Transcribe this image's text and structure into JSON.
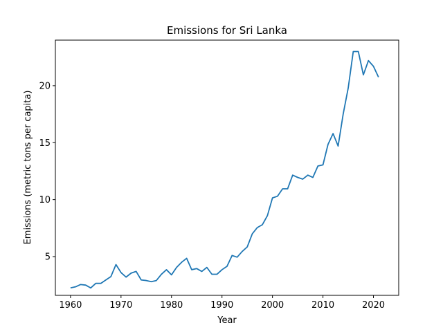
{
  "chart_data": {
    "type": "line",
    "title": "Emissions for Sri Lanka",
    "xlabel": "Year",
    "ylabel": "Emissions (metric tons per capita)",
    "xlim": [
      1957,
      2025
    ],
    "ylim": [
      1.6,
      24.0
    ],
    "x_ticks": [
      1960,
      1970,
      1980,
      1990,
      2000,
      2010,
      2020
    ],
    "y_ticks": [
      5,
      10,
      15,
      20
    ],
    "grid": false,
    "line_color": "#1f77b4",
    "series": [
      {
        "x": [
          1960,
          1961,
          1962,
          1963,
          1964,
          1965,
          1966,
          1967,
          1968,
          1969,
          1970,
          1971,
          1972,
          1973,
          1974,
          1975,
          1976,
          1977,
          1978,
          1979,
          1980,
          1981,
          1982,
          1983,
          1984,
          1985,
          1986,
          1987,
          1988,
          1989,
          1990,
          1991,
          1992,
          1993,
          1994,
          1995,
          1996,
          1997,
          1998,
          1999,
          2000,
          2001,
          2002,
          2003,
          2004,
          2005,
          2006,
          2007,
          2008,
          2009,
          2010,
          2011,
          2012,
          2013,
          2014,
          2015,
          2016,
          2017,
          2018,
          2019,
          2020,
          2021
        ],
        "values": [
          2.25,
          2.35,
          2.55,
          2.5,
          2.25,
          2.65,
          2.65,
          2.95,
          3.25,
          4.3,
          3.6,
          3.2,
          3.55,
          3.7,
          2.95,
          2.9,
          2.8,
          2.9,
          3.45,
          3.85,
          3.4,
          4.05,
          4.5,
          4.85,
          3.85,
          3.95,
          3.7,
          4.05,
          3.45,
          3.45,
          3.85,
          4.15,
          5.1,
          4.95,
          5.45,
          5.85,
          7.0,
          7.55,
          7.8,
          8.6,
          10.15,
          10.3,
          10.95,
          10.95,
          12.15,
          11.95,
          11.8,
          12.15,
          11.95,
          12.95,
          13.05,
          14.85,
          15.8,
          14.7,
          17.5,
          19.8,
          23.0,
          23.0,
          20.95,
          22.2,
          21.7,
          20.75
        ]
      }
    ]
  }
}
